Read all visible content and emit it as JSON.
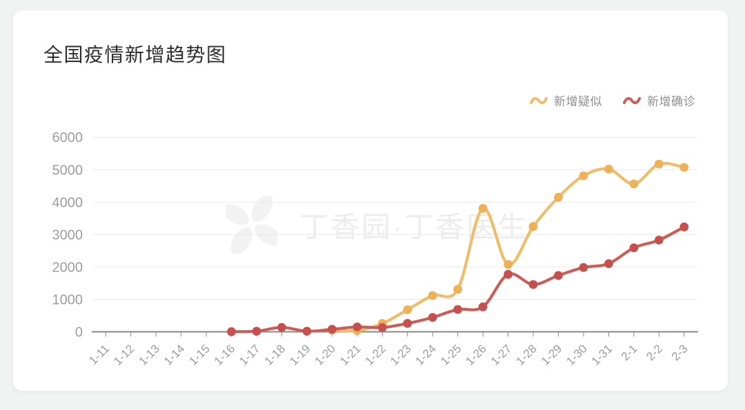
{
  "page": {
    "background_color": "#f1f2f2",
    "card_color": "#ffffff"
  },
  "header": {
    "title": "全国疫情新增趋势图"
  },
  "watermark": {
    "text": "丁香园·丁香医生"
  },
  "chart_data": {
    "type": "line",
    "title": "全国疫情新增趋势图",
    "categories": [
      "1-11",
      "1-12",
      "1-13",
      "1-14",
      "1-15",
      "1-16",
      "1-17",
      "1-18",
      "1-19",
      "1-20",
      "1-21",
      "1-22",
      "1-23",
      "1-24",
      "1-25",
      "1-26",
      "1-27",
      "1-28",
      "1-29",
      "1-30",
      "1-31",
      "2-1",
      "2-2",
      "2-3"
    ],
    "series": [
      {
        "name": "新增疑似",
        "color": "#f2bb66",
        "dot_color": "#efb156",
        "start_index": 9,
        "start_category": "1-20",
        "values": [
          54,
          37,
          257,
          680,
          1118,
          1309,
          3806,
          2077,
          3248,
          4148,
          4812,
          5019,
          4562,
          5173,
          5072
        ]
      },
      {
        "name": "新增确诊",
        "color": "#cf5b55",
        "dot_color": "#c6504d",
        "start_index": 5,
        "start_category": "1-16",
        "values": [
          4,
          17,
          136,
          19,
          77,
          149,
          131,
          259,
          444,
          688,
          769,
          1771,
          1459,
          1737,
          1982,
          2102,
          2590,
          2829,
          3235
        ]
      }
    ],
    "xlabel": "",
    "ylabel": "",
    "ylim": [
      0,
      6000
    ],
    "yticks": [
      0,
      1000,
      2000,
      3000,
      4000,
      5000,
      6000
    ],
    "grid": "horizontal-only",
    "legend_position": "top-right",
    "smooth": true,
    "axis_color": "#878787",
    "gridline_color": "#e9e9e9",
    "tick_label_color": "#9c9c9c"
  }
}
